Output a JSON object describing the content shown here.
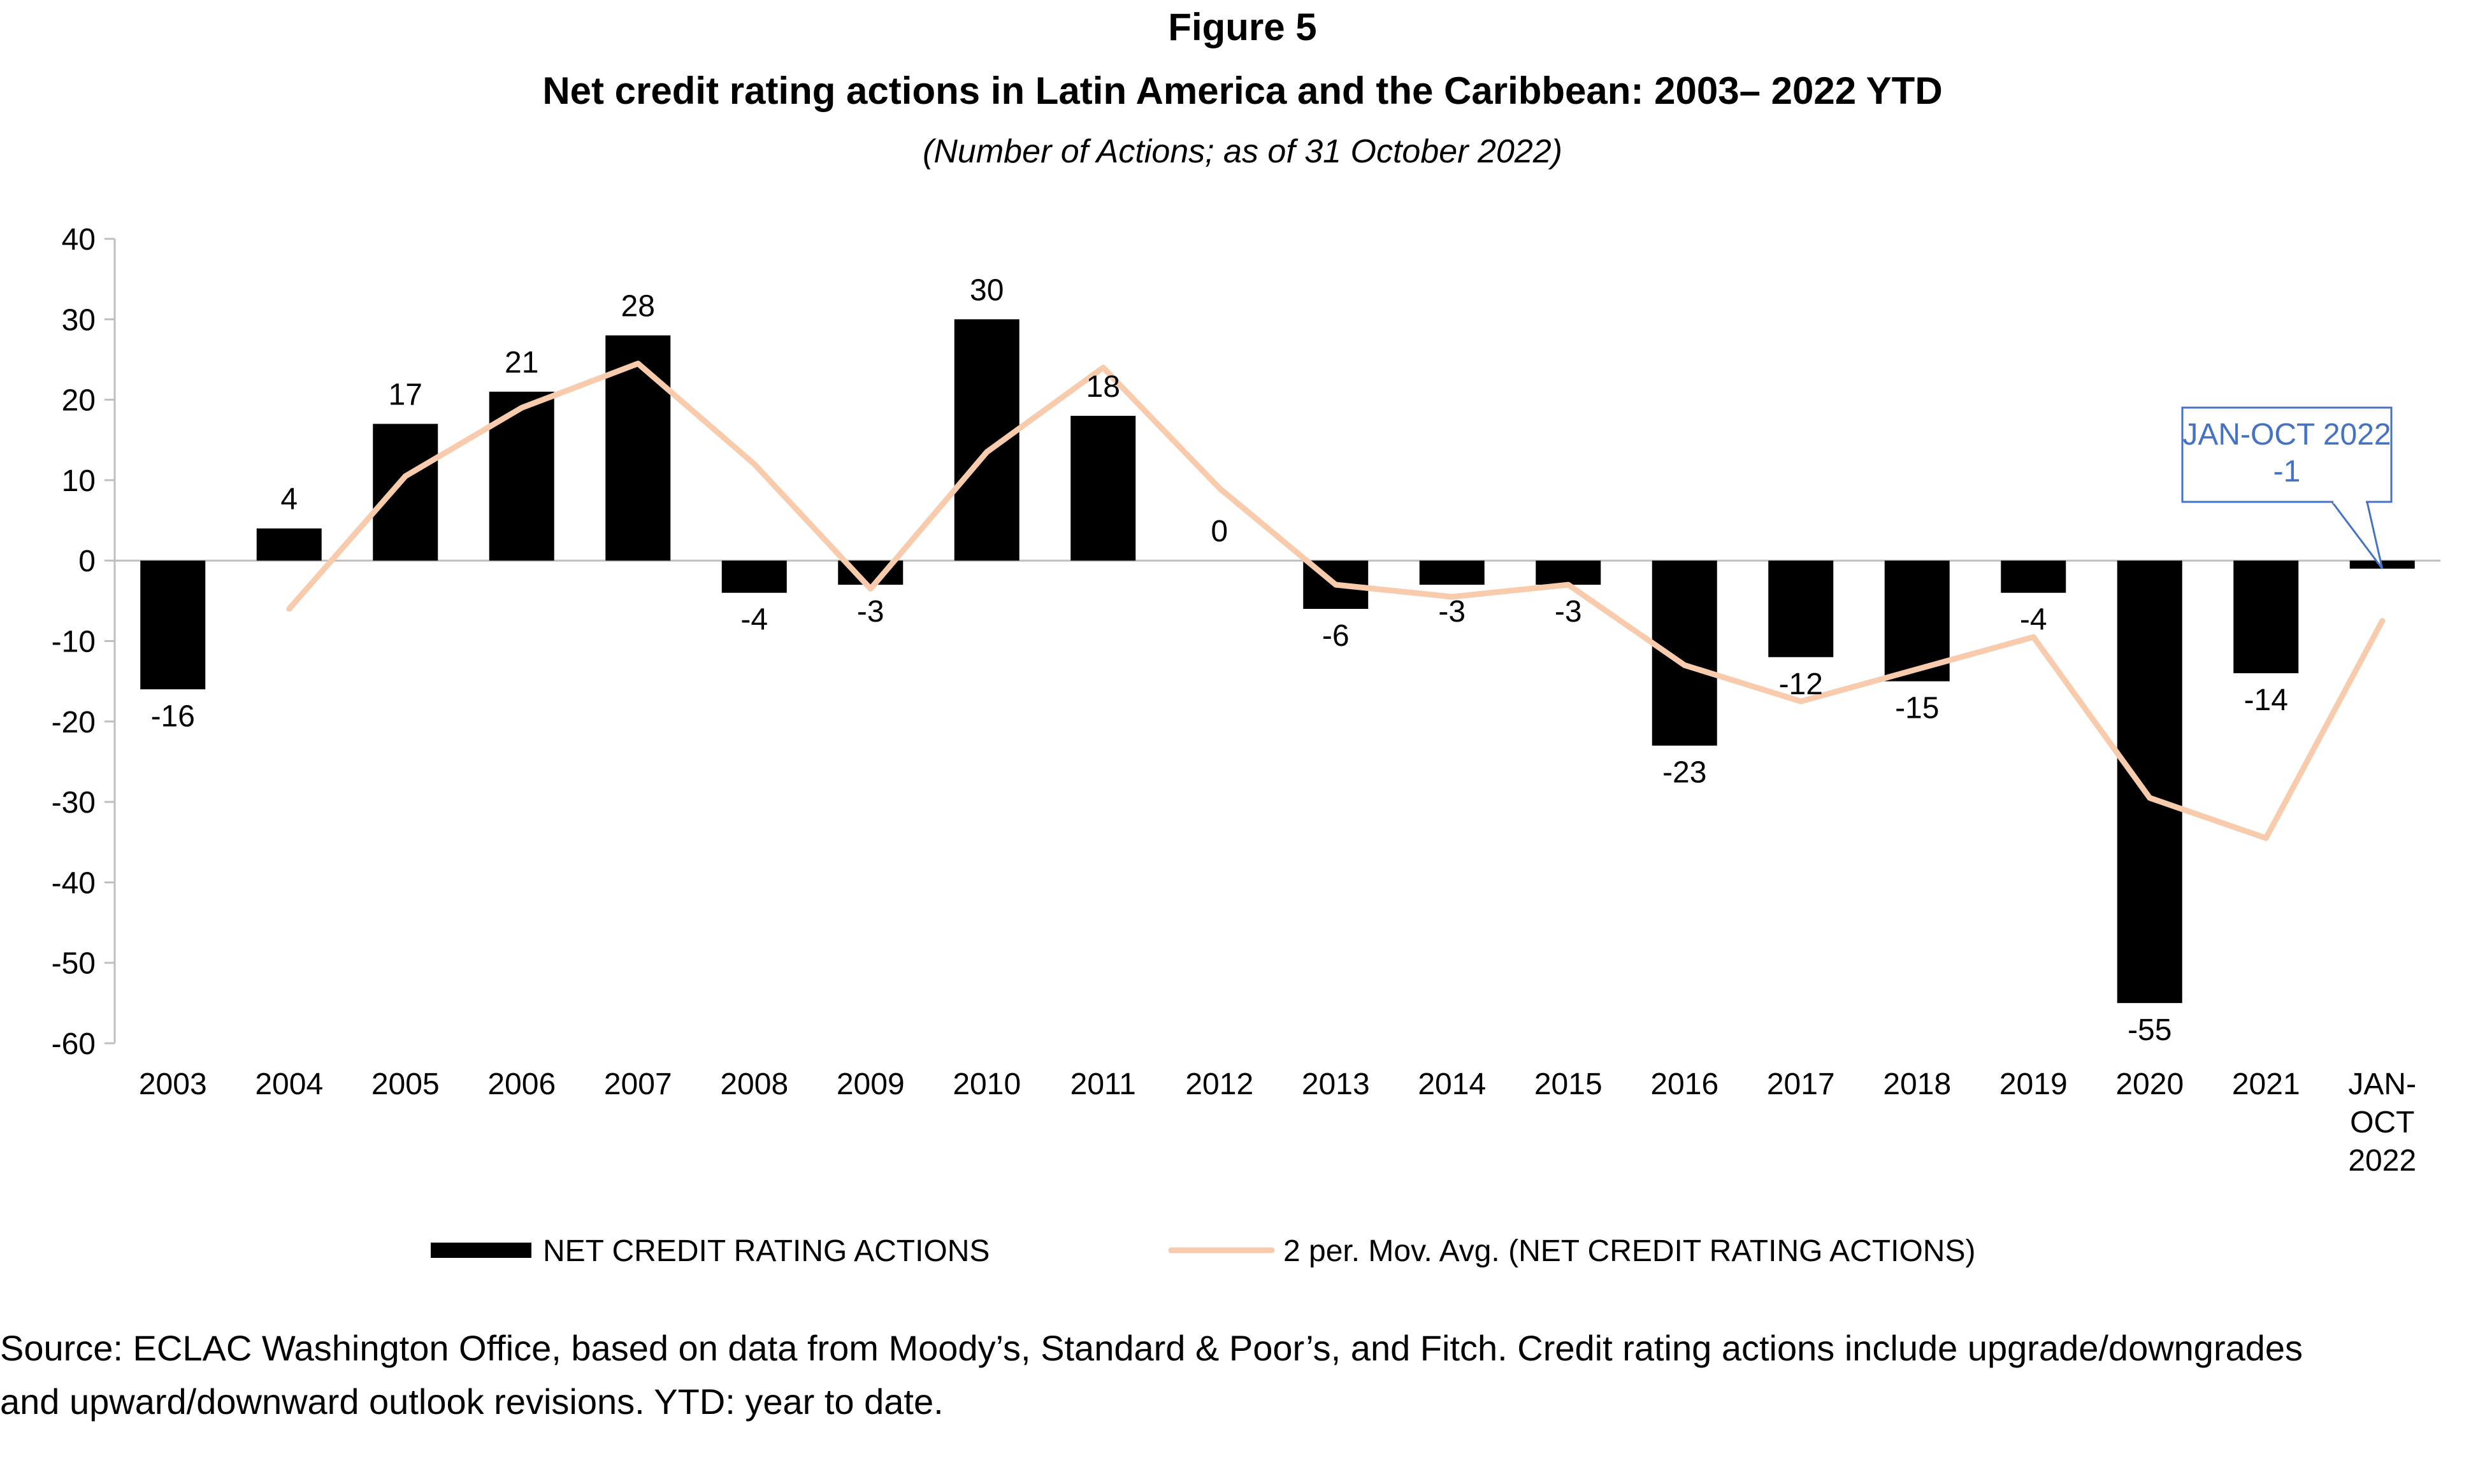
{
  "figure_label": "Figure 5",
  "chart_data": {
    "type": "bar",
    "title": "Net credit rating actions in Latin America and the Caribbean: 2003– 2022 YTD",
    "subtitle": "(Number of Actions; as of 31 October 2022)",
    "categories": [
      "2003",
      "2004",
      "2005",
      "2006",
      "2007",
      "2008",
      "2009",
      "2010",
      "2011",
      "2012",
      "2013",
      "2014",
      "2015",
      "2016",
      "2017",
      "2018",
      "2019",
      "2020",
      "2021",
      "JAN-OCT 2022"
    ],
    "category_lines": [
      [
        "2003"
      ],
      [
        "2004"
      ],
      [
        "2005"
      ],
      [
        "2006"
      ],
      [
        "2007"
      ],
      [
        "2008"
      ],
      [
        "2009"
      ],
      [
        "2010"
      ],
      [
        "2011"
      ],
      [
        "2012"
      ],
      [
        "2013"
      ],
      [
        "2014"
      ],
      [
        "2015"
      ],
      [
        "2016"
      ],
      [
        "2017"
      ],
      [
        "2018"
      ],
      [
        "2019"
      ],
      [
        "2020"
      ],
      [
        "2021"
      ],
      [
        "JAN-",
        "OCT",
        "2022"
      ]
    ],
    "series": [
      {
        "name": "NET CREDIT RATING ACTIONS",
        "kind": "bar",
        "color": "#000000",
        "values": [
          -16,
          4,
          17,
          21,
          28,
          -4,
          -3,
          30,
          18,
          0,
          -6,
          -3,
          -3,
          -23,
          -12,
          -15,
          -4,
          -55,
          -14,
          -1
        ],
        "labels": [
          "-16",
          "4",
          "17",
          "21",
          "28",
          "-4",
          "-3",
          "30",
          "18",
          "0",
          "-6",
          "-3",
          "-3",
          "-23",
          "-12",
          "-15",
          "-4",
          "-55",
          "-14",
          ""
        ]
      },
      {
        "name": "2 per. Mov. Avg. (NET CREDIT RATING ACTIONS)",
        "kind": "line",
        "color": "#F8CBAD",
        "values": [
          null,
          -6,
          10.5,
          19,
          24.5,
          12,
          -3.5,
          13.5,
          24,
          9,
          -3,
          -4.5,
          -3,
          -13,
          -17.5,
          -13.5,
          -9.5,
          -29.5,
          -34.5,
          -7.5
        ]
      }
    ],
    "ylim": [
      -60,
      40
    ],
    "yticks": [
      40,
      30,
      20,
      10,
      0,
      -10,
      -20,
      -30,
      -40,
      -50,
      -60
    ],
    "xlabel": "",
    "ylabel": "",
    "legend": "bottom",
    "grid": false,
    "callout": {
      "lines": [
        "JAN-OCT 2022",
        "-1"
      ],
      "color": "#4472C4",
      "target_index": 19
    }
  },
  "source": {
    "line1": "Source:  ECLAC Washington Office, based on data from Moody’s, Standard & Poor’s, and Fitch. Credit rating actions include upgrade/downgrades",
    "line2": "and upward/downward outlook revisions. YTD: year to date."
  }
}
